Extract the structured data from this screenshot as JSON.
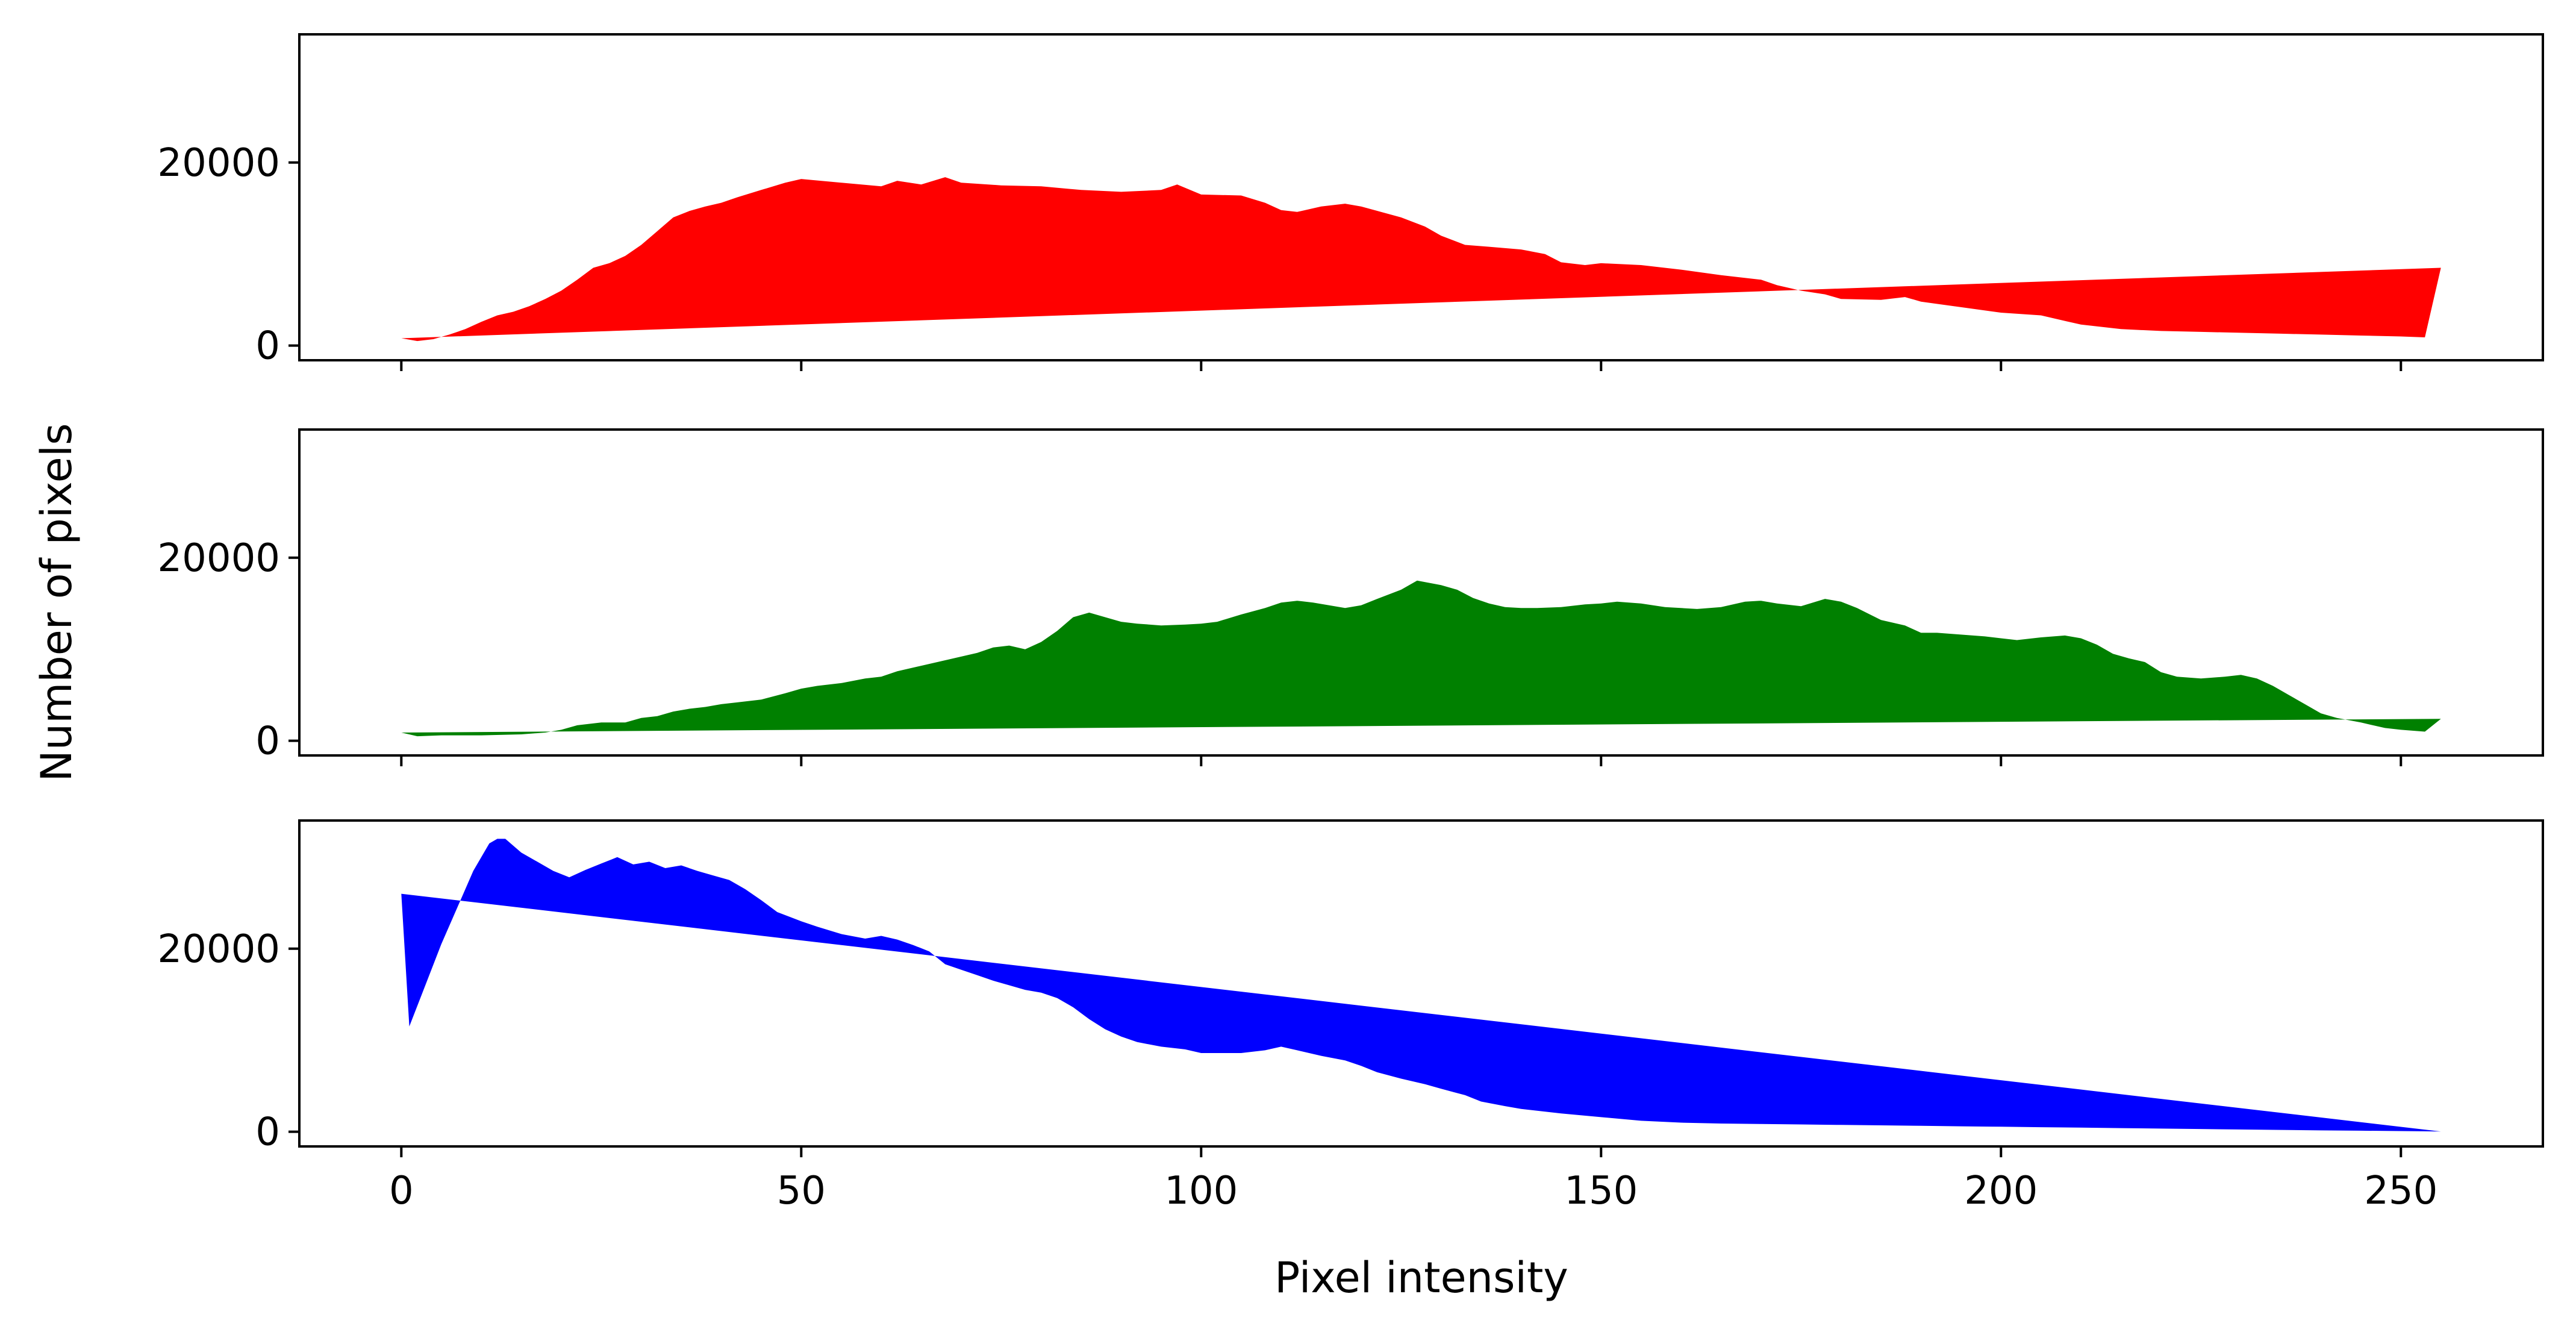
{
  "chart_data": {
    "type": "area",
    "layout": "3 vertically stacked subplots sharing the x axis",
    "xlabel": "Pixel intensity",
    "ylabel": "Number of pixels",
    "xlim": [
      -12.75,
      267.75
    ],
    "ylim": [
      -1600,
      34000
    ],
    "xticks": [
      0,
      50,
      100,
      150,
      200,
      250
    ],
    "yticks": [
      0,
      20000
    ],
    "grid": false,
    "polygon_closed_between_first_and_last_point": true,
    "series": [
      {
        "color": "#ff0000",
        "points": [
          [
            0,
            800
          ],
          [
            2,
            500
          ],
          [
            4,
            700
          ],
          [
            6,
            1200
          ],
          [
            8,
            1800
          ],
          [
            10,
            2600
          ],
          [
            12,
            3300
          ],
          [
            14,
            3700
          ],
          [
            16,
            4300
          ],
          [
            18,
            5100
          ],
          [
            20,
            6000
          ],
          [
            22,
            7200
          ],
          [
            24,
            8500
          ],
          [
            26,
            9000
          ],
          [
            28,
            9800
          ],
          [
            30,
            11000
          ],
          [
            32,
            12500
          ],
          [
            34,
            14000
          ],
          [
            36,
            14700
          ],
          [
            38,
            15200
          ],
          [
            40,
            15600
          ],
          [
            42,
            16200
          ],
          [
            45,
            17000
          ],
          [
            48,
            17800
          ],
          [
            50,
            18200
          ],
          [
            55,
            17800
          ],
          [
            60,
            17400
          ],
          [
            62,
            18000
          ],
          [
            65,
            17600
          ],
          [
            68,
            18400
          ],
          [
            70,
            17800
          ],
          [
            75,
            17500
          ],
          [
            80,
            17400
          ],
          [
            85,
            17000
          ],
          [
            90,
            16800
          ],
          [
            95,
            17000
          ],
          [
            97,
            17600
          ],
          [
            100,
            16500
          ],
          [
            105,
            16400
          ],
          [
            108,
            15600
          ],
          [
            110,
            14800
          ],
          [
            112,
            14600
          ],
          [
            115,
            15200
          ],
          [
            118,
            15500
          ],
          [
            120,
            15200
          ],
          [
            125,
            14000
          ],
          [
            128,
            13000
          ],
          [
            130,
            12000
          ],
          [
            133,
            11000
          ],
          [
            136,
            10800
          ],
          [
            140,
            10500
          ],
          [
            143,
            10000
          ],
          [
            145,
            9100
          ],
          [
            148,
            8800
          ],
          [
            150,
            9000
          ],
          [
            155,
            8800
          ],
          [
            160,
            8300
          ],
          [
            165,
            7700
          ],
          [
            170,
            7200
          ],
          [
            172,
            6600
          ],
          [
            175,
            6000
          ],
          [
            178,
            5600
          ],
          [
            180,
            5100
          ],
          [
            185,
            5000
          ],
          [
            188,
            5300
          ],
          [
            190,
            4800
          ],
          [
            195,
            4200
          ],
          [
            200,
            3600
          ],
          [
            205,
            3300
          ],
          [
            208,
            2700
          ],
          [
            210,
            2300
          ],
          [
            215,
            1800
          ],
          [
            220,
            1600
          ],
          [
            225,
            1500
          ],
          [
            230,
            1400
          ],
          [
            235,
            1300
          ],
          [
            240,
            1200
          ],
          [
            245,
            1100
          ],
          [
            250,
            1000
          ],
          [
            253,
            900
          ],
          [
            255,
            8500
          ]
        ]
      },
      {
        "color": "#008000",
        "points": [
          [
            0,
            900
          ],
          [
            2,
            500
          ],
          [
            5,
            600
          ],
          [
            10,
            600
          ],
          [
            15,
            700
          ],
          [
            18,
            900
          ],
          [
            20,
            1200
          ],
          [
            22,
            1700
          ],
          [
            25,
            2000
          ],
          [
            28,
            2000
          ],
          [
            30,
            2500
          ],
          [
            32,
            2700
          ],
          [
            34,
            3200
          ],
          [
            36,
            3500
          ],
          [
            38,
            3700
          ],
          [
            40,
            4000
          ],
          [
            42,
            4200
          ],
          [
            45,
            4500
          ],
          [
            48,
            5200
          ],
          [
            50,
            5700
          ],
          [
            52,
            6000
          ],
          [
            55,
            6300
          ],
          [
            58,
            6800
          ],
          [
            60,
            7000
          ],
          [
            62,
            7600
          ],
          [
            65,
            8200
          ],
          [
            68,
            8800
          ],
          [
            70,
            9200
          ],
          [
            72,
            9600
          ],
          [
            74,
            10200
          ],
          [
            76,
            10400
          ],
          [
            78,
            10000
          ],
          [
            80,
            10800
          ],
          [
            82,
            12000
          ],
          [
            84,
            13500
          ],
          [
            86,
            14000
          ],
          [
            88,
            13500
          ],
          [
            90,
            13000
          ],
          [
            92,
            12800
          ],
          [
            95,
            12600
          ],
          [
            98,
            12700
          ],
          [
            100,
            12800
          ],
          [
            102,
            13000
          ],
          [
            105,
            13800
          ],
          [
            108,
            14500
          ],
          [
            110,
            15100
          ],
          [
            112,
            15300
          ],
          [
            114,
            15100
          ],
          [
            116,
            14800
          ],
          [
            118,
            14500
          ],
          [
            120,
            14800
          ],
          [
            122,
            15500
          ],
          [
            125,
            16500
          ],
          [
            127,
            17500
          ],
          [
            130,
            17000
          ],
          [
            132,
            16500
          ],
          [
            134,
            15600
          ],
          [
            136,
            15000
          ],
          [
            138,
            14600
          ],
          [
            140,
            14500
          ],
          [
            142,
            14500
          ],
          [
            145,
            14600
          ],
          [
            148,
            14900
          ],
          [
            150,
            15000
          ],
          [
            152,
            15200
          ],
          [
            155,
            15000
          ],
          [
            158,
            14600
          ],
          [
            160,
            14500
          ],
          [
            162,
            14400
          ],
          [
            165,
            14600
          ],
          [
            168,
            15200
          ],
          [
            170,
            15300
          ],
          [
            172,
            15000
          ],
          [
            175,
            14700
          ],
          [
            178,
            15500
          ],
          [
            180,
            15200
          ],
          [
            182,
            14500
          ],
          [
            185,
            13200
          ],
          [
            188,
            12600
          ],
          [
            190,
            11800
          ],
          [
            192,
            11800
          ],
          [
            195,
            11600
          ],
          [
            198,
            11400
          ],
          [
            200,
            11200
          ],
          [
            202,
            11000
          ],
          [
            205,
            11300
          ],
          [
            208,
            11500
          ],
          [
            210,
            11200
          ],
          [
            212,
            10500
          ],
          [
            214,
            9500
          ],
          [
            216,
            9000
          ],
          [
            218,
            8600
          ],
          [
            220,
            7500
          ],
          [
            222,
            7000
          ],
          [
            225,
            6800
          ],
          [
            228,
            7000
          ],
          [
            230,
            7200
          ],
          [
            232,
            6800
          ],
          [
            234,
            6000
          ],
          [
            236,
            5000
          ],
          [
            238,
            4000
          ],
          [
            240,
            3000
          ],
          [
            242,
            2500
          ],
          [
            245,
            2000
          ],
          [
            248,
            1400
          ],
          [
            250,
            1200
          ],
          [
            253,
            1000
          ],
          [
            255,
            2400
          ]
        ]
      },
      {
        "color": "#0000ff",
        "points": [
          [
            0,
            26000
          ],
          [
            1,
            11500
          ],
          [
            3,
            16000
          ],
          [
            5,
            20500
          ],
          [
            7,
            24500
          ],
          [
            9,
            28500
          ],
          [
            11,
            31500
          ],
          [
            12,
            32000
          ],
          [
            13,
            32000
          ],
          [
            15,
            30500
          ],
          [
            17,
            29500
          ],
          [
            19,
            28500
          ],
          [
            21,
            27800
          ],
          [
            23,
            28600
          ],
          [
            25,
            29300
          ],
          [
            27,
            30000
          ],
          [
            29,
            29200
          ],
          [
            31,
            29500
          ],
          [
            33,
            28800
          ],
          [
            35,
            29100
          ],
          [
            37,
            28500
          ],
          [
            39,
            28000
          ],
          [
            41,
            27500
          ],
          [
            43,
            26500
          ],
          [
            45,
            25300
          ],
          [
            47,
            24000
          ],
          [
            50,
            23000
          ],
          [
            52,
            22400
          ],
          [
            55,
            21600
          ],
          [
            58,
            21100
          ],
          [
            60,
            21400
          ],
          [
            62,
            21000
          ],
          [
            64,
            20400
          ],
          [
            66,
            19700
          ],
          [
            68,
            18300
          ],
          [
            70,
            17700
          ],
          [
            72,
            17100
          ],
          [
            74,
            16500
          ],
          [
            76,
            16000
          ],
          [
            78,
            15500
          ],
          [
            80,
            15200
          ],
          [
            82,
            14600
          ],
          [
            84,
            13600
          ],
          [
            86,
            12300
          ],
          [
            88,
            11200
          ],
          [
            90,
            10400
          ],
          [
            92,
            9800
          ],
          [
            95,
            9300
          ],
          [
            98,
            9000
          ],
          [
            100,
            8600
          ],
          [
            105,
            8600
          ],
          [
            108,
            8900
          ],
          [
            110,
            9300
          ],
          [
            112,
            8900
          ],
          [
            115,
            8300
          ],
          [
            118,
            7800
          ],
          [
            120,
            7200
          ],
          [
            122,
            6500
          ],
          [
            125,
            5800
          ],
          [
            128,
            5200
          ],
          [
            130,
            4700
          ],
          [
            133,
            4000
          ],
          [
            135,
            3300
          ],
          [
            138,
            2800
          ],
          [
            140,
            2500
          ],
          [
            145,
            2000
          ],
          [
            150,
            1600
          ],
          [
            155,
            1200
          ],
          [
            160,
            1000
          ],
          [
            165,
            900
          ],
          [
            170,
            850
          ],
          [
            175,
            800
          ],
          [
            180,
            750
          ],
          [
            185,
            700
          ],
          [
            190,
            650
          ],
          [
            195,
            600
          ],
          [
            200,
            550
          ],
          [
            205,
            500
          ],
          [
            210,
            450
          ],
          [
            215,
            400
          ],
          [
            220,
            350
          ],
          [
            225,
            300
          ],
          [
            230,
            250
          ],
          [
            235,
            200
          ],
          [
            240,
            150
          ],
          [
            245,
            120
          ],
          [
            250,
            80
          ],
          [
            253,
            50
          ],
          [
            255,
            30
          ]
        ]
      }
    ]
  }
}
